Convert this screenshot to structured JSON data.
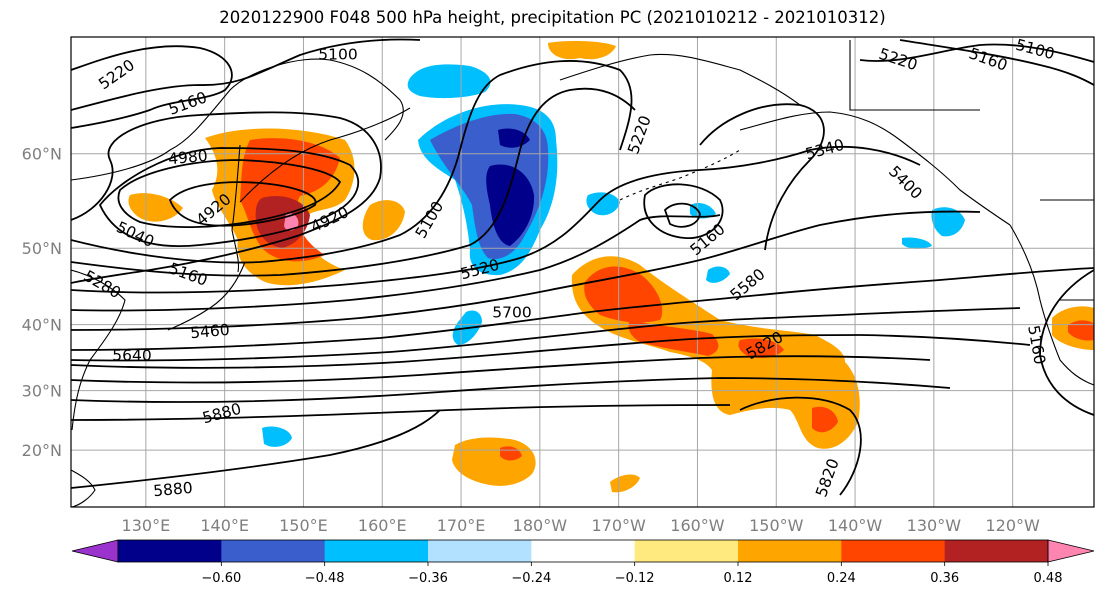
{
  "title": "2020122900 F048 500 hPa height, precipitation PC (2021010212 - 2021010312)",
  "lat_labels": [
    {
      "text": "60°N",
      "lat": 60
    },
    {
      "text": "50°N",
      "lat": 50
    },
    {
      "text": "40°N",
      "lat": 40
    },
    {
      "text": "30°N",
      "lat": 30
    },
    {
      "text": "20°N",
      "lat": 20
    }
  ],
  "lon_labels": [
    {
      "text": "130°E",
      "lon": 130
    },
    {
      "text": "140°E",
      "lon": 140
    },
    {
      "text": "150°E",
      "lon": 150
    },
    {
      "text": "160°E",
      "lon": 160
    },
    {
      "text": "170°E",
      "lon": 170
    },
    {
      "text": "180°W",
      "lon": 180
    },
    {
      "text": "170°W",
      "lon": 190
    },
    {
      "text": "160°W",
      "lon": 200
    },
    {
      "text": "150°W",
      "lon": 210
    },
    {
      "text": "140°W",
      "lon": 220
    },
    {
      "text": "130°W",
      "lon": 230
    },
    {
      "text": "120°W",
      "lon": 240
    }
  ],
  "contour_labels": [
    "5100",
    "5220",
    "5160",
    "5220",
    "5160",
    "5100",
    "4980",
    "4920",
    "4920",
    "5040",
    "5160",
    "5280",
    "5460",
    "5640",
    "5100",
    "5520",
    "5700",
    "5220",
    "5340",
    "5400",
    "5160",
    "5580",
    "5820",
    "5880",
    "5880",
    "5820",
    "5160"
  ],
  "colorbar": {
    "ticks": [
      "−0.60",
      "−0.48",
      "−0.36",
      "−0.24",
      "−0.12",
      "0.12",
      "0.24",
      "0.36",
      "0.48",
      "0.60"
    ],
    "colors": [
      "#9a32cd",
      "#00008b",
      "#3a5fcd",
      "#00bfff",
      "#b2e0ff",
      "#ffffff",
      "#ffea7f",
      "#ffa500",
      "#ff4500",
      "#b22222",
      "#ff85b0"
    ]
  },
  "colors": {
    "grid": "#a6a6a6",
    "contour": "#000000",
    "coast": "#000000"
  }
}
